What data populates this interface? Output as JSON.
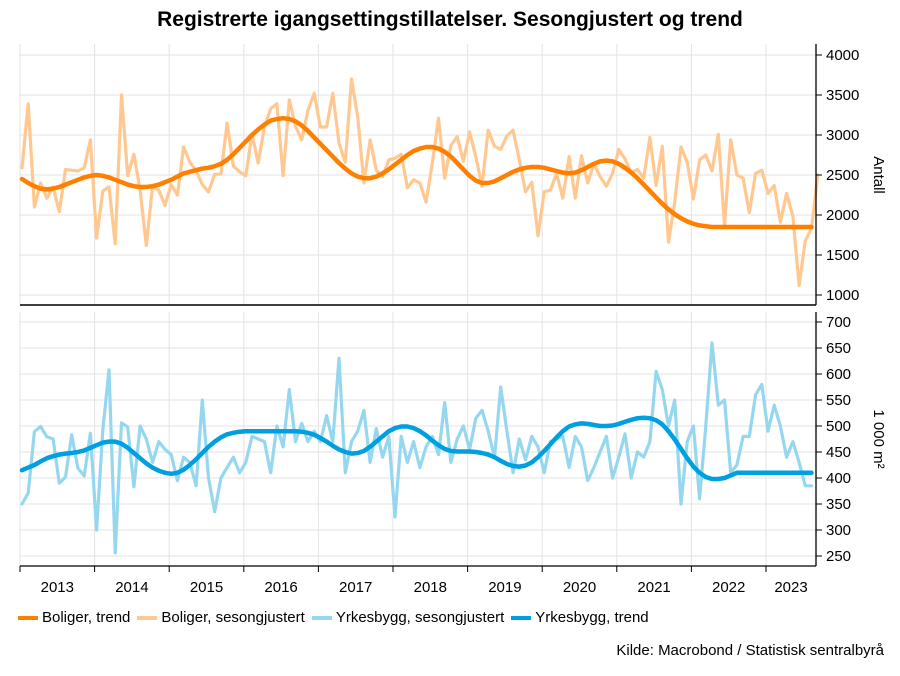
{
  "chart_data": [
    {
      "type": "line",
      "panel": "top",
      "title": "Registrerte igangsettingstillatelser. Sesongjustert og trend",
      "ylabel": "Antall",
      "yaxis_side": "right",
      "ylim": [
        1000,
        4000
      ],
      "yticks": [
        1000,
        1500,
        2000,
        2500,
        3000,
        3500,
        4000
      ],
      "grid": true,
      "x_start": "2013-01",
      "x_frequency": "monthly",
      "series": [
        {
          "name": "Boliger, sesongjustert",
          "color": "#FFC891",
          "values": [
            2590,
            3390,
            2100,
            2400,
            2210,
            2350,
            2040,
            2570,
            2560,
            2550,
            2590,
            2940,
            1710,
            2300,
            2350,
            1640,
            3500,
            2490,
            2760,
            2310,
            1620,
            2350,
            2310,
            2120,
            2380,
            2250,
            2850,
            2660,
            2560,
            2380,
            2290,
            2510,
            2510,
            3150,
            2610,
            2540,
            2490,
            3010,
            2650,
            3100,
            3330,
            3390,
            2490,
            3440,
            3110,
            2940,
            3310,
            3520,
            3100,
            3100,
            3520,
            2900,
            2660,
            3700,
            3230,
            2400,
            2940,
            2560,
            2480,
            2690,
            2710,
            2760,
            2340,
            2440,
            2400,
            2160,
            2650,
            3210,
            2460,
            2870,
            2980,
            2670,
            3040,
            2730,
            2360,
            3060,
            2860,
            2820,
            2990,
            3060,
            2690,
            2290,
            2410,
            1740,
            2290,
            2310,
            2520,
            2210,
            2730,
            2210,
            2740,
            2400,
            2640,
            2480,
            2360,
            2520,
            2820,
            2700,
            2530,
            2570,
            2460,
            2970,
            2370,
            2860,
            1660,
            2160,
            2850,
            2660,
            2200,
            2690,
            2750,
            2550,
            3010,
            1860,
            2940,
            2500,
            2460,
            2030,
            2520,
            2560,
            2270,
            2370,
            1910,
            2270,
            1980,
            1120,
            1680,
            1830,
            2500
          ]
        },
        {
          "name": "Boliger, trend",
          "color": "#FF7F00",
          "values": [
            2450,
            2400,
            2360,
            2330,
            2320,
            2330,
            2350,
            2380,
            2410,
            2440,
            2470,
            2490,
            2500,
            2490,
            2470,
            2440,
            2410,
            2380,
            2360,
            2350,
            2350,
            2360,
            2380,
            2410,
            2440,
            2480,
            2520,
            2540,
            2560,
            2580,
            2590,
            2610,
            2640,
            2690,
            2760,
            2840,
            2920,
            3000,
            3070,
            3130,
            3180,
            3200,
            3210,
            3200,
            3170,
            3120,
            3050,
            2970,
            2890,
            2810,
            2730,
            2650,
            2580,
            2520,
            2480,
            2460,
            2460,
            2480,
            2520,
            2570,
            2630,
            2690,
            2750,
            2800,
            2830,
            2850,
            2850,
            2830,
            2790,
            2730,
            2650,
            2570,
            2490,
            2430,
            2400,
            2400,
            2420,
            2460,
            2500,
            2540,
            2570,
            2590,
            2600,
            2600,
            2590,
            2570,
            2550,
            2530,
            2520,
            2530,
            2560,
            2600,
            2640,
            2670,
            2680,
            2670,
            2640,
            2590,
            2530,
            2460,
            2380,
            2300,
            2220,
            2140,
            2070,
            2010,
            1960,
            1920,
            1890,
            1870,
            1860,
            1850,
            1850,
            1850,
            1850,
            1850,
            1850,
            1850,
            1850,
            1850,
            1850,
            1850,
            1850,
            1850,
            1850,
            1850,
            1850,
            1850
          ]
        }
      ]
    },
    {
      "type": "line",
      "panel": "bottom",
      "ylabel": "1 000 m²",
      "yaxis_side": "right",
      "ylim": [
        250,
        700
      ],
      "yticks": [
        250,
        300,
        350,
        400,
        450,
        500,
        550,
        600,
        650,
        700
      ],
      "grid": true,
      "x_start": "2013-01",
      "x_frequency": "monthly",
      "xticks": [
        "2013",
        "2014",
        "2015",
        "2016",
        "2017",
        "2018",
        "2019",
        "2020",
        "2021",
        "2022",
        "2023"
      ],
      "series": [
        {
          "name": "Yrkesbygg, sesongjustert",
          "color": "#96D7F0",
          "values": [
            350,
            371,
            489,
            499,
            479,
            475,
            390,
            402,
            483,
            419,
            404,
            486,
            300,
            492,
            608,
            256,
            506,
            498,
            383,
            500,
            475,
            430,
            470,
            455,
            445,
            395,
            440,
            430,
            385,
            550,
            400,
            335,
            400,
            420,
            440,
            410,
            430,
            480,
            475,
            470,
            410,
            500,
            460,
            570,
            470,
            505,
            470,
            490,
            470,
            520,
            470,
            630,
            410,
            470,
            490,
            530,
            430,
            495,
            440,
            480,
            325,
            480,
            430,
            470,
            420,
            460,
            480,
            445,
            545,
            430,
            475,
            500,
            455,
            515,
            530,
            490,
            440,
            575,
            490,
            410,
            475,
            435,
            480,
            460,
            410,
            470,
            475,
            480,
            420,
            480,
            460,
            395,
            420,
            450,
            480,
            400,
            440,
            485,
            400,
            450,
            440,
            470,
            605,
            570,
            500,
            550,
            350,
            470,
            500,
            360,
            500,
            660,
            540,
            550,
            410,
            425,
            480,
            480,
            560,
            580,
            490,
            540,
            500,
            440,
            470,
            430,
            385,
            385
          ]
        },
        {
          "name": "Yrkesbygg, trend",
          "color": "#009FDF",
          "values": [
            415,
            420,
            425,
            432,
            438,
            442,
            445,
            447,
            448,
            450,
            453,
            458,
            463,
            468,
            470,
            470,
            466,
            458,
            448,
            438,
            428,
            420,
            414,
            410,
            408,
            410,
            416,
            425,
            436,
            448,
            460,
            470,
            478,
            484,
            487,
            489,
            490,
            490,
            490,
            490,
            490,
            490,
            490,
            490,
            490,
            489,
            487,
            483,
            477,
            470,
            462,
            455,
            450,
            447,
            448,
            452,
            460,
            470,
            480,
            490,
            496,
            499,
            499,
            496,
            490,
            482,
            472,
            463,
            456,
            452,
            451,
            451,
            451,
            450,
            448,
            445,
            440,
            433,
            427,
            423,
            422,
            424,
            430,
            440,
            452,
            465,
            478,
            490,
            499,
            503,
            505,
            504,
            502,
            500,
            500,
            501,
            504,
            508,
            512,
            515,
            516,
            515,
            511,
            503,
            490,
            474,
            456,
            438,
            422,
            410,
            402,
            398,
            398,
            400,
            405,
            410,
            410,
            410,
            410,
            410,
            410,
            410,
            410,
            410,
            410,
            410,
            410,
            410
          ]
        }
      ]
    },
    {
      "type": "legend",
      "placement": "bottom-left",
      "entries": [
        {
          "label": "Boliger, trend",
          "color": "#FF7F00"
        },
        {
          "label": "Boliger, sesongjustert",
          "color": "#FFC891"
        },
        {
          "label": "Yrkesbygg, sesongjustert",
          "color": "#96D7F0"
        },
        {
          "label": "Yrkesbygg, trend",
          "color": "#009FDF"
        }
      ]
    }
  ],
  "title": "Registrerte igangsettingstillatelser. Sesongjustert og trend",
  "source": "Kilde: Macrobond / Statistisk sentralbyrå",
  "legend": [
    {
      "label": "Boliger, trend",
      "color": "#FF7F00"
    },
    {
      "label": "Boliger, sesongjustert",
      "color": "#FFC891"
    },
    {
      "label": "Yrkesbygg, sesongjustert",
      "color": "#96D7F0"
    },
    {
      "label": "Yrkesbygg, trend",
      "color": "#009FDF"
    }
  ]
}
